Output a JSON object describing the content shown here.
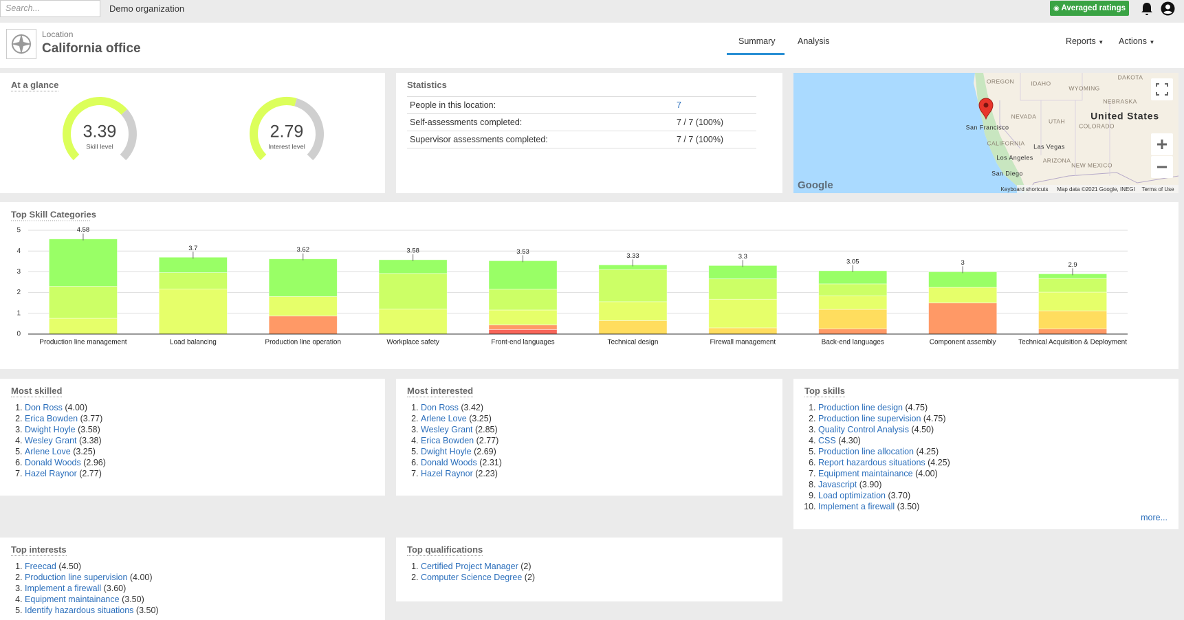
{
  "topbar": {
    "search_placeholder": "Search...",
    "organization": "Demo organization",
    "ratings_button": "Averaged ratings"
  },
  "header": {
    "kicker": "Location",
    "title": "California office",
    "tabs": [
      "Summary",
      "Analysis"
    ],
    "menus": [
      "Reports",
      "Actions"
    ]
  },
  "at_a_glance": {
    "title": "At a glance",
    "gauges": [
      {
        "value": 3.39,
        "label": "Skill level"
      },
      {
        "value": 2.79,
        "label": "Interest level"
      }
    ]
  },
  "statistics": {
    "title": "Statistics",
    "rows": [
      [
        "People in this location:",
        "7"
      ],
      [
        "Self-assessments completed:",
        "7 / 7 (100%)"
      ],
      [
        "Supervisor assessments completed:",
        "7 / 7 (100%)"
      ]
    ]
  },
  "map": {
    "labels": [
      "DAKOTA",
      "OREGON",
      "IDAHO",
      "WYOMING",
      "NEBRASKA",
      "NEVADA",
      "UTAH",
      "United States",
      "COLORADO",
      "San Francisco",
      "CALIFORNIA",
      "Las Vegas",
      "Los Angeles",
      "ARIZONA",
      "NEW MEXICO",
      "San Diego"
    ],
    "logo": "Google",
    "footer": [
      "Keyboard shortcuts",
      "Map data ©2021 Google, INEGI",
      "Terms of Use"
    ]
  },
  "chart_data": {
    "type": "bar",
    "stacked": true,
    "title": "Top Skill Categories",
    "categories": [
      "Production line management",
      "Load balancing",
      "Production line operation",
      "Workplace safety",
      "Front-end languages",
      "Technical design",
      "Firewall management",
      "Back-end languages",
      "Component assembly",
      "Technical Acquisition & Deployment"
    ],
    "series": [
      {
        "color": "#f8655a",
        "values": [
          0,
          0,
          0,
          0,
          0.22,
          0,
          0,
          0,
          0,
          0
        ]
      },
      {
        "color": "#ff9966",
        "values": [
          0,
          0,
          0.87,
          0,
          0.22,
          0,
          0,
          0.25,
          1.5,
          0.25
        ]
      },
      {
        "color": "#ffdd5e",
        "values": [
          0,
          0,
          0,
          0,
          0,
          0.65,
          0.3,
          0.94,
          0,
          0.87
        ]
      },
      {
        "color": "#e6ff6a",
        "values": [
          0.76,
          2.17,
          0.94,
          1.2,
          0.72,
          0.91,
          1.38,
          0.65,
          0.75,
          0.9
        ]
      },
      {
        "color": "#ccff66",
        "values": [
          1.54,
          0.79,
          0,
          1.72,
          1.0,
          1.55,
          0.98,
          0.58,
          0,
          0.66
        ]
      },
      {
        "color": "#99ff66",
        "values": [
          2.28,
          0.74,
          1.81,
          0.66,
          1.37,
          0.22,
          0.64,
          0.63,
          0.75,
          0.22
        ]
      }
    ],
    "totals": [
      4.58,
      3.7,
      3.62,
      3.58,
      3.53,
      3.33,
      3.3,
      3.05,
      3,
      2.9
    ],
    "ylim": [
      0,
      5
    ],
    "yticks": [
      0,
      1,
      2,
      3,
      4,
      5
    ],
    "grid": true
  },
  "lists": [
    {
      "title": "Most skilled",
      "items": [
        {
          "name": "Don Ross",
          "score": "(4.00)"
        },
        {
          "name": "Erica Bowden",
          "score": "(3.77)"
        },
        {
          "name": "Dwight Hoyle",
          "score": "(3.58)"
        },
        {
          "name": "Wesley Grant",
          "score": "(3.38)"
        },
        {
          "name": "Arlene Love",
          "score": "(3.25)"
        },
        {
          "name": "Donald Woods",
          "score": "(2.96)"
        },
        {
          "name": "Hazel Raynor",
          "score": "(2.77)"
        }
      ]
    },
    {
      "title": "Most interested",
      "items": [
        {
          "name": "Don Ross",
          "score": "(3.42)"
        },
        {
          "name": "Arlene Love",
          "score": "(3.25)"
        },
        {
          "name": "Wesley Grant",
          "score": "(2.85)"
        },
        {
          "name": "Erica Bowden",
          "score": "(2.77)"
        },
        {
          "name": "Dwight Hoyle",
          "score": "(2.69)"
        },
        {
          "name": "Donald Woods",
          "score": "(2.31)"
        },
        {
          "name": "Hazel Raynor",
          "score": "(2.23)"
        }
      ]
    },
    {
      "title": "Top skills",
      "more": "more...",
      "items": [
        {
          "name": "Production line design",
          "score": "(4.75)"
        },
        {
          "name": "Production line supervision",
          "score": "(4.75)"
        },
        {
          "name": "Quality Control Analysis",
          "score": "(4.50)"
        },
        {
          "name": "CSS",
          "score": "(4.30)"
        },
        {
          "name": "Production line allocation",
          "score": "(4.25)"
        },
        {
          "name": "Report hazardous situations",
          "score": "(4.25)"
        },
        {
          "name": "Equipment maintainance",
          "score": "(4.00)"
        },
        {
          "name": "Javascript",
          "score": "(3.90)"
        },
        {
          "name": "Load optimization",
          "score": "(3.70)"
        },
        {
          "name": "Implement a firewall",
          "score": "(3.50)"
        }
      ]
    },
    {
      "title": "Top interests",
      "items": [
        {
          "name": "Freecad",
          "score": "(4.50)"
        },
        {
          "name": "Production line supervision",
          "score": "(4.00)"
        },
        {
          "name": "Implement a firewall",
          "score": "(3.60)"
        },
        {
          "name": "Equipment maintainance",
          "score": "(3.50)"
        },
        {
          "name": "Identify hazardous situations",
          "score": "(3.50)"
        }
      ]
    },
    {
      "title": "Top qualifications",
      "items": [
        {
          "name": "Certified Project Manager",
          "score": "(2)"
        },
        {
          "name": "Computer Science Degree",
          "score": "(2)"
        }
      ]
    }
  ]
}
